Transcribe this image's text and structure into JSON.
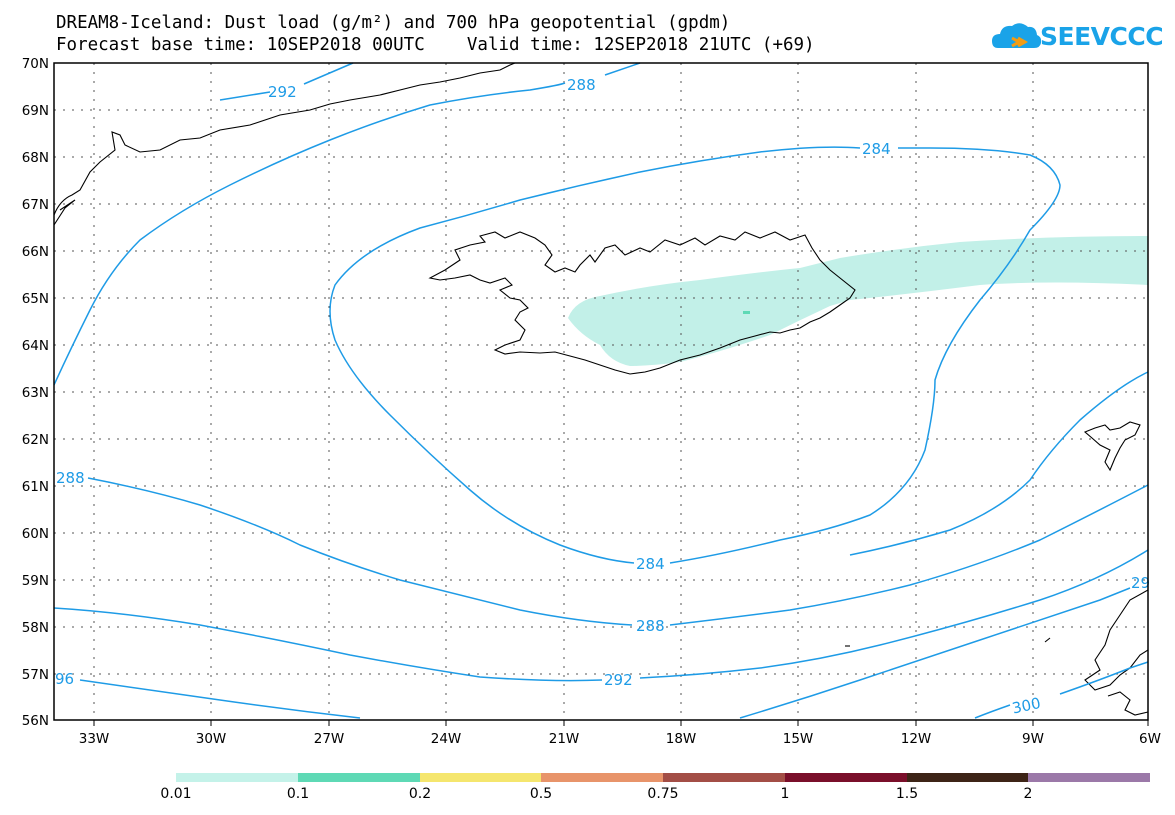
{
  "header": {
    "title_line1": "DREAM8-Iceland: Dust load (g/m²) and 700 hPa geopotential (gpdm)",
    "title_line2": "Forecast base time: 10SEP2018 00UTC    Valid time: 12SEP2018 21UTC (+69)"
  },
  "logo": {
    "text": "SEEVCCC",
    "icon": "cloud-logo-icon",
    "color": "#1aa3e8"
  },
  "map": {
    "lat_labels": [
      "70N",
      "69N",
      "68N",
      "67N",
      "66N",
      "65N",
      "64N",
      "63N",
      "62N",
      "61N",
      "60N",
      "59N",
      "58N",
      "57N",
      "56N"
    ],
    "lon_labels": [
      "33W",
      "30W",
      "27W",
      "24W",
      "21W",
      "18W",
      "15W",
      "12W",
      "9W",
      "6W"
    ],
    "contour_color": "#1e9be6",
    "dust_color": "#c2f0e8",
    "coast_color": "#000000",
    "contour_labels": [
      {
        "id": "c292a",
        "text": "292"
      },
      {
        "id": "c288a",
        "text": "288"
      },
      {
        "id": "c284a",
        "text": "284"
      },
      {
        "id": "c288b",
        "text": "288"
      },
      {
        "id": "c284b",
        "text": "284"
      },
      {
        "id": "c288c",
        "text": "288"
      },
      {
        "id": "c292b",
        "text": "292"
      },
      {
        "id": "c96",
        "text": "96"
      },
      {
        "id": "c300",
        "text": "300"
      },
      {
        "id": "c29",
        "text": "29"
      }
    ]
  },
  "colorbar": {
    "labels": [
      "0.01",
      "0.1",
      "0.2",
      "0.5",
      "0.75",
      "1",
      "1.5",
      "2"
    ],
    "colors": [
      "#c4f2e9",
      "#5ed9b5",
      "#f5e66e",
      "#e8946a",
      "#a34e46",
      "#7a0f2a",
      "#3d2416",
      "#9b78a8"
    ]
  }
}
